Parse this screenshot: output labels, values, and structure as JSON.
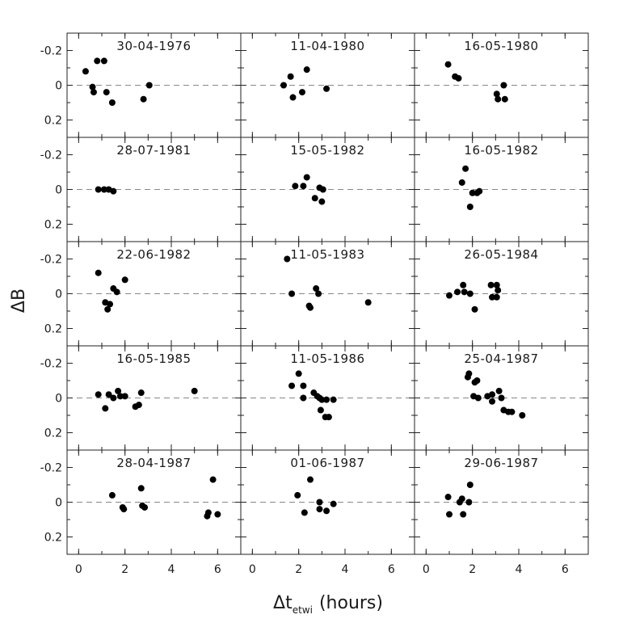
{
  "figure": {
    "ylabel": "ΔB",
    "xlabel_main": "Δt",
    "xlabel_sub": "etwi",
    "xlabel_units": "(hours)"
  },
  "chart_data": {
    "type": "scatter",
    "layout": "5x3 grid",
    "xlim": [
      -0.5,
      7
    ],
    "ylim": [
      -0.3,
      0.3
    ],
    "y_inverted": true,
    "x_ticks": [
      0,
      2,
      4,
      6
    ],
    "y_ticks": [
      -0.2,
      0,
      0.2
    ],
    "x_tick_labels": [
      "0",
      "2",
      "4",
      "6"
    ],
    "y_tick_labels": [
      "-0.2",
      "0",
      "0.2"
    ],
    "reference_line": {
      "y": 0,
      "style": "dashed"
    },
    "xlabel": "Δt_etwi (hours)",
    "ylabel": "ΔB",
    "panels": [
      {
        "title": "30-04-1976",
        "points": [
          [
            0.3,
            -0.08
          ],
          [
            0.6,
            0.01
          ],
          [
            0.65,
            0.04
          ],
          [
            0.8,
            -0.14
          ],
          [
            1.1,
            -0.14
          ],
          [
            1.2,
            0.04
          ],
          [
            1.45,
            0.1
          ],
          [
            2.8,
            0.08
          ],
          [
            3.05,
            0.0
          ]
        ]
      },
      {
        "title": "11-04-1980",
        "points": [
          [
            1.35,
            0.0
          ],
          [
            1.65,
            -0.05
          ],
          [
            1.75,
            0.07
          ],
          [
            2.15,
            0.04
          ],
          [
            2.35,
            -0.09
          ],
          [
            3.2,
            0.02
          ]
        ]
      },
      {
        "title": "16-05-1980",
        "points": [
          [
            0.95,
            -0.12
          ],
          [
            1.25,
            -0.05
          ],
          [
            1.4,
            -0.04
          ],
          [
            3.05,
            0.05
          ],
          [
            3.1,
            0.08
          ],
          [
            3.35,
            0.0
          ],
          [
            3.4,
            0.08
          ]
        ]
      },
      {
        "title": "28-07-1981",
        "points": [
          [
            0.85,
            0.0
          ],
          [
            1.1,
            0.0
          ],
          [
            1.3,
            0.0
          ],
          [
            1.5,
            0.01
          ]
        ]
      },
      {
        "title": "15-05-1982",
        "points": [
          [
            1.85,
            -0.02
          ],
          [
            2.2,
            -0.02
          ],
          [
            2.35,
            -0.07
          ],
          [
            2.7,
            0.05
          ],
          [
            2.9,
            -0.01
          ],
          [
            3.05,
            0.0
          ],
          [
            3.0,
            0.07
          ]
        ]
      },
      {
        "title": "16-05-1982",
        "points": [
          [
            1.55,
            -0.04
          ],
          [
            1.7,
            -0.12
          ],
          [
            1.9,
            0.1
          ],
          [
            2.0,
            0.02
          ],
          [
            2.2,
            0.02
          ],
          [
            2.3,
            0.01
          ]
        ]
      },
      {
        "title": "22-06-1982",
        "points": [
          [
            0.85,
            -0.12
          ],
          [
            1.15,
            0.05
          ],
          [
            1.25,
            0.09
          ],
          [
            1.35,
            0.06
          ],
          [
            1.5,
            -0.03
          ],
          [
            1.65,
            -0.01
          ],
          [
            2.0,
            -0.08
          ]
        ]
      },
      {
        "title": "11-05-1983",
        "points": [
          [
            1.5,
            -0.2
          ],
          [
            1.7,
            0.0
          ],
          [
            2.45,
            0.07
          ],
          [
            2.5,
            0.08
          ],
          [
            2.75,
            -0.03
          ],
          [
            2.85,
            0.0
          ],
          [
            5.0,
            0.05
          ]
        ]
      },
      {
        "title": "26-05-1984",
        "points": [
          [
            1.0,
            0.01
          ],
          [
            1.35,
            -0.01
          ],
          [
            1.6,
            -0.05
          ],
          [
            1.65,
            -0.01
          ],
          [
            1.9,
            0.0
          ],
          [
            2.1,
            0.09
          ],
          [
            2.8,
            -0.05
          ],
          [
            2.85,
            0.02
          ],
          [
            3.05,
            -0.05
          ],
          [
            3.05,
            0.02
          ],
          [
            3.1,
            -0.02
          ]
        ]
      },
      {
        "title": "16-05-1985",
        "points": [
          [
            0.85,
            -0.02
          ],
          [
            1.15,
            0.06
          ],
          [
            1.3,
            -0.02
          ],
          [
            1.5,
            0.0
          ],
          [
            1.7,
            -0.04
          ],
          [
            1.8,
            -0.01
          ],
          [
            2.0,
            -0.01
          ],
          [
            2.45,
            0.05
          ],
          [
            2.6,
            0.04
          ],
          [
            2.7,
            -0.03
          ],
          [
            5.0,
            -0.04
          ]
        ]
      },
      {
        "title": "11-05-1986",
        "points": [
          [
            1.7,
            -0.07
          ],
          [
            2.0,
            -0.14
          ],
          [
            2.2,
            -0.07
          ],
          [
            2.2,
            0.0
          ],
          [
            2.65,
            -0.03
          ],
          [
            2.8,
            -0.01
          ],
          [
            2.9,
            0.0
          ],
          [
            2.95,
            0.07
          ],
          [
            3.0,
            0.01
          ],
          [
            3.15,
            0.11
          ],
          [
            3.2,
            0.01
          ],
          [
            3.3,
            0.11
          ],
          [
            3.5,
            0.01
          ]
        ]
      },
      {
        "title": "25-04-1987",
        "points": [
          [
            1.8,
            -0.12
          ],
          [
            1.85,
            -0.14
          ],
          [
            2.05,
            -0.01
          ],
          [
            2.1,
            -0.09
          ],
          [
            2.2,
            -0.1
          ],
          [
            2.25,
            0.0
          ],
          [
            2.65,
            -0.01
          ],
          [
            2.85,
            0.02
          ],
          [
            2.85,
            -0.02
          ],
          [
            3.15,
            -0.04
          ],
          [
            3.25,
            0.0
          ],
          [
            3.35,
            0.07
          ],
          [
            3.55,
            0.08
          ],
          [
            3.7,
            0.08
          ],
          [
            4.15,
            0.1
          ]
        ]
      },
      {
        "title": "28-04-1987",
        "points": [
          [
            1.45,
            -0.04
          ],
          [
            1.9,
            0.03
          ],
          [
            1.95,
            0.04
          ],
          [
            2.7,
            -0.08
          ],
          [
            2.75,
            0.02
          ],
          [
            2.85,
            0.03
          ],
          [
            5.55,
            0.08
          ],
          [
            5.6,
            0.06
          ],
          [
            5.8,
            -0.13
          ],
          [
            6.0,
            0.07
          ]
        ]
      },
      {
        "title": "01-06-1987",
        "points": [
          [
            1.95,
            -0.04
          ],
          [
            2.25,
            0.06
          ],
          [
            2.5,
            -0.13
          ],
          [
            2.9,
            0.0
          ],
          [
            2.9,
            0.04
          ],
          [
            3.2,
            0.05
          ],
          [
            3.5,
            0.01
          ]
        ]
      },
      {
        "title": "29-06-1987",
        "points": [
          [
            0.95,
            -0.03
          ],
          [
            1.0,
            0.07
          ],
          [
            1.45,
            0.0
          ],
          [
            1.55,
            -0.02
          ],
          [
            1.6,
            0.07
          ],
          [
            1.85,
            0.0
          ],
          [
            1.9,
            -0.1
          ]
        ]
      }
    ]
  }
}
